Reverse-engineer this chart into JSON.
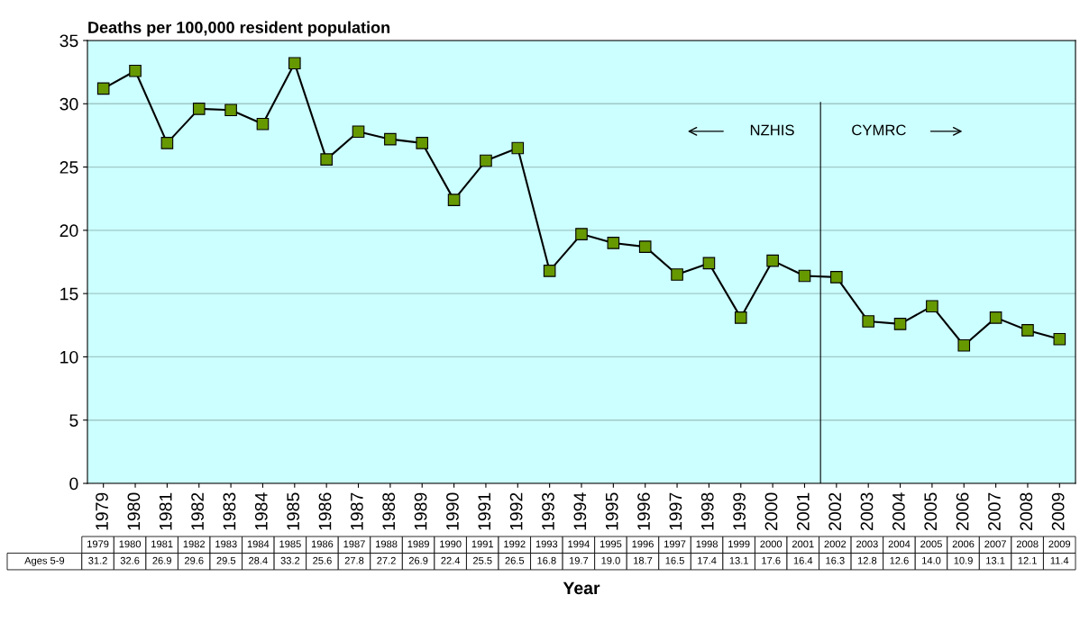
{
  "chart_data": {
    "type": "line",
    "title": "Deaths per 100,000 resident population",
    "xlabel": "Year",
    "categories": [
      "1979",
      "1980",
      "1981",
      "1982",
      "1983",
      "1984",
      "1985",
      "1986",
      "1987",
      "1988",
      "1989",
      "1990",
      "1991",
      "1992",
      "1993",
      "1994",
      "1995",
      "1996",
      "1997",
      "1998",
      "1999",
      "2000",
      "2001",
      "2002",
      "2003",
      "2004",
      "2005",
      "2006",
      "2007",
      "2008",
      "2009"
    ],
    "series": [
      {
        "name": "Ages 5-9",
        "color": "#669900",
        "values": [
          31.2,
          32.6,
          26.9,
          29.6,
          29.5,
          28.4,
          33.2,
          25.6,
          27.8,
          27.2,
          26.9,
          22.4,
          25.5,
          26.5,
          16.8,
          19.7,
          19.0,
          18.7,
          16.5,
          17.4,
          13.1,
          17.6,
          16.4,
          16.3,
          12.8,
          12.6,
          14.0,
          10.9,
          13.1,
          12.1,
          11.4
        ]
      }
    ],
    "value_labels": [
      "31.2",
      "32.6",
      "26.9",
      "29.6",
      "29.5",
      "28.4",
      "33.2",
      "25.6",
      "27.8",
      "27.2",
      "26.9",
      "22.4",
      "25.5",
      "26.5",
      "16.8",
      "19.7",
      "19.0",
      "18.7",
      "16.5",
      "17.4",
      "13.1",
      "17.6",
      "16.4",
      "16.3",
      "12.8",
      "12.6",
      "14.0",
      "10.9",
      "13.1",
      "12.1",
      "11.4"
    ],
    "ylim": [
      0,
      35
    ],
    "yticks": [
      0,
      5,
      10,
      15,
      20,
      25,
      30,
      35
    ],
    "grid": "y",
    "marker": "square",
    "line_style": "solid",
    "ref_lines": [
      {
        "axis": "x",
        "value": "2001",
        "color": "#000000"
      }
    ],
    "annotations": [
      "NZHIS",
      "CYMRC"
    ]
  }
}
